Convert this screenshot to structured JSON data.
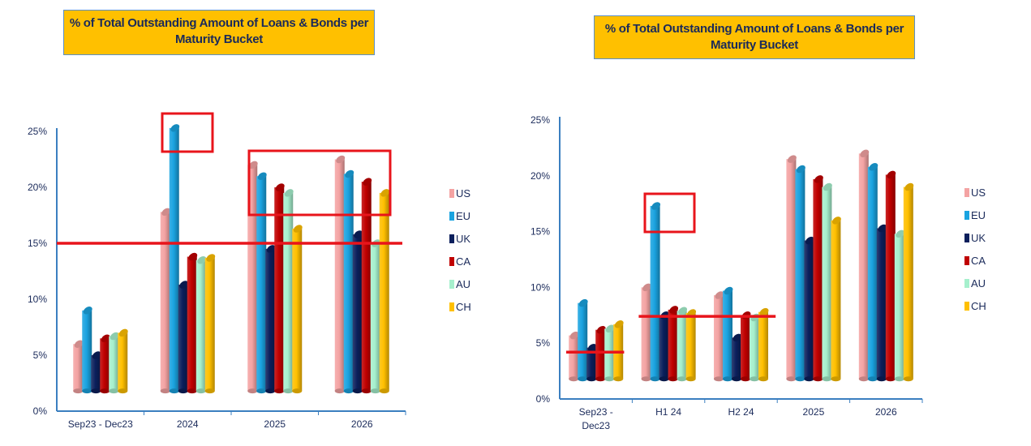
{
  "colors": {
    "US": "#F4A3A3",
    "EU": "#1AA3E0",
    "UK": "#0B1F5C",
    "CA": "#C00000",
    "AU": "#A6F0CD",
    "CH": "#FFC000",
    "highlight": "#E8141B",
    "axis": "#3b7fc0"
  },
  "chart_data": [
    {
      "type": "bar",
      "title": "% of Total Outstanding Amount of Loans & Bonds per Maturity Bucket",
      "categories": [
        "Sep23 - Dec23",
        "2024",
        "2025",
        "2026"
      ],
      "category_lines": [
        [
          "Sep23 - Dec23"
        ],
        [
          "2024"
        ],
        [
          "2025"
        ],
        [
          "2026"
        ]
      ],
      "yticks": [
        "0%",
        "5%",
        "10%",
        "15%",
        "20%",
        "25%"
      ],
      "ylim": [
        0,
        25
      ],
      "legend": "right",
      "series": [
        {
          "name": "US",
          "values": [
            6.0,
            17.8,
            22.0,
            22.5
          ]
        },
        {
          "name": "EU",
          "values": [
            9.0,
            25.3,
            21.0,
            21.2
          ]
        },
        {
          "name": "UK",
          "values": [
            5.0,
            11.3,
            14.5,
            15.8
          ]
        },
        {
          "name": "CA",
          "values": [
            6.5,
            13.8,
            20.0,
            20.5
          ]
        },
        {
          "name": "AU",
          "values": [
            6.7,
            13.5,
            19.5,
            15.0
          ]
        },
        {
          "name": "CH",
          "values": [
            7.0,
            13.7,
            16.3,
            19.5
          ]
        }
      ],
      "reference_lines": [
        {
          "value": 15,
          "from_category": 0,
          "to_category": 3
        }
      ]
    },
    {
      "type": "bar",
      "title": "% of Total Outstanding Amount of Loans & Bonds per Maturity Bucket",
      "categories": [
        "Sep23 - Dec23",
        "H1 24",
        "H2 24",
        "2025",
        "2026"
      ],
      "category_lines": [
        [
          "Sep23 -",
          "Dec23"
        ],
        [
          "H1 24"
        ],
        [
          "H2 24"
        ],
        [
          "2025"
        ],
        [
          "2026"
        ]
      ],
      "yticks": [
        "0%",
        "5%",
        "10%",
        "15%",
        "20%",
        "25%"
      ],
      "ylim": [
        0,
        25
      ],
      "legend": "right",
      "series": [
        {
          "name": "US",
          "values": [
            5.7,
            10.0,
            9.3,
            21.5,
            22.0
          ]
        },
        {
          "name": "EU",
          "values": [
            8.6,
            17.3,
            9.7,
            20.6,
            20.8
          ]
        },
        {
          "name": "UK",
          "values": [
            4.6,
            7.5,
            5.5,
            14.2,
            15.3
          ]
        },
        {
          "name": "CA",
          "values": [
            6.2,
            8.0,
            7.5,
            19.7,
            20.1
          ]
        },
        {
          "name": "AU",
          "values": [
            6.3,
            7.9,
            7.3,
            19.0,
            14.8
          ]
        },
        {
          "name": "CH",
          "values": [
            6.7,
            7.7,
            7.8,
            16.0,
            19.0
          ]
        }
      ],
      "reference_lines": [
        {
          "value": 4.2,
          "from_category": 0,
          "to_category": 0
        },
        {
          "value": 7.4,
          "from_category": 1,
          "to_category": 2
        }
      ]
    }
  ]
}
